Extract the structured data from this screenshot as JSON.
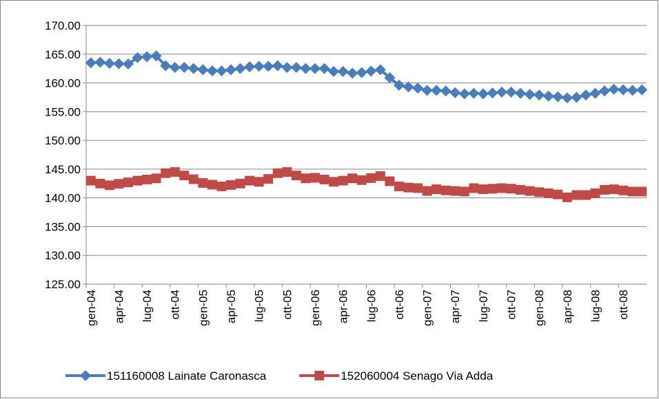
{
  "chart_data": {
    "type": "line",
    "categories": [
      "gen-04",
      null,
      null,
      "apr-04",
      null,
      null,
      "lug-04",
      null,
      null,
      "ott-04",
      null,
      null,
      "gen-05",
      null,
      null,
      "apr-05",
      null,
      null,
      "lug-05",
      null,
      null,
      "ott-05",
      null,
      null,
      "gen-06",
      null,
      null,
      "apr-06",
      null,
      null,
      "lug-06",
      null,
      null,
      "ott-06",
      null,
      null,
      "gen-07",
      null,
      null,
      "apr-07",
      null,
      null,
      "lug-07",
      null,
      null,
      "ott-07",
      null,
      null,
      "gen-08",
      null,
      null,
      "apr-08",
      null,
      null,
      "lug-08",
      null,
      null,
      "ott-08",
      null,
      null
    ],
    "series": [
      {
        "name": "151160008 Lainate Caronasca",
        "color": "#4a7ebb",
        "marker": "diamond",
        "values": [
          163.5,
          163.6,
          163.4,
          163.35,
          163.3,
          164.4,
          164.55,
          164.7,
          163.0,
          162.7,
          162.7,
          162.5,
          162.3,
          162.1,
          162.1,
          162.3,
          162.5,
          162.8,
          162.9,
          162.9,
          163.0,
          162.7,
          162.7,
          162.5,
          162.5,
          162.5,
          162.0,
          162.0,
          161.7,
          161.8,
          162.05,
          162.3,
          160.9,
          159.6,
          159.3,
          159.1,
          158.7,
          158.7,
          158.6,
          158.3,
          158.1,
          158.2,
          158.1,
          158.25,
          158.4,
          158.4,
          158.2,
          158.0,
          157.9,
          157.7,
          157.6,
          157.4,
          157.5,
          157.9,
          158.2,
          158.6,
          158.9,
          158.8,
          158.7,
          158.8
        ]
      },
      {
        "name": "152060004 Senago Via Adda",
        "color": "#be4b48",
        "marker": "square",
        "values": [
          143.0,
          142.5,
          142.2,
          142.45,
          142.7,
          143.0,
          143.2,
          143.4,
          144.3,
          144.5,
          143.9,
          143.25,
          142.6,
          142.3,
          142.0,
          142.25,
          142.5,
          143.0,
          142.8,
          143.3,
          144.3,
          144.5,
          143.9,
          143.4,
          143.5,
          143.2,
          142.8,
          143.0,
          143.4,
          143.1,
          143.45,
          143.8,
          142.9,
          142.0,
          141.8,
          141.7,
          141.2,
          141.5,
          141.3,
          141.2,
          141.1,
          141.7,
          141.5,
          141.6,
          141.7,
          141.6,
          141.4,
          141.2,
          141.0,
          140.8,
          140.6,
          140.1,
          140.5,
          140.5,
          140.8,
          141.4,
          141.5,
          141.3,
          141.1,
          141.1
        ]
      }
    ],
    "ylim": [
      125,
      170
    ],
    "yticks": [
      {
        "value": 125,
        "label": "125.00"
      },
      {
        "value": 130,
        "label": "130.00"
      },
      {
        "value": 135,
        "label": "135.00"
      },
      {
        "value": 140,
        "label": "140.00"
      },
      {
        "value": 145,
        "label": "145.00"
      },
      {
        "value": 150,
        "label": "150.00"
      },
      {
        "value": 155,
        "label": "155.00"
      },
      {
        "value": 160,
        "label": "160.00"
      },
      {
        "value": 165,
        "label": "165.00"
      },
      {
        "value": 170,
        "label": "170.00"
      }
    ],
    "grid": true,
    "legend": "bottom"
  }
}
